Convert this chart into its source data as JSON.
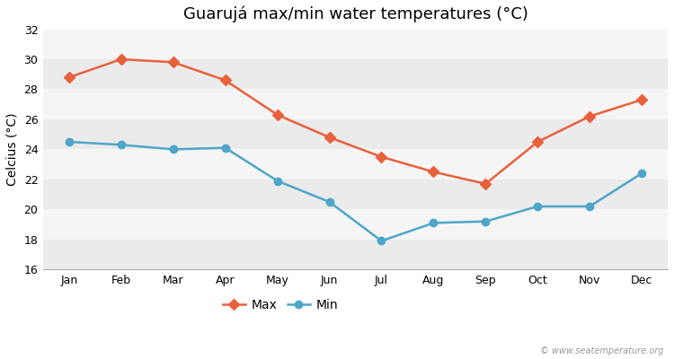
{
  "title": "Guarujá max/min water temperatures (°C)",
  "ylabel": "Celcius (°C)",
  "months": [
    "Jan",
    "Feb",
    "Mar",
    "Apr",
    "May",
    "Jun",
    "Jul",
    "Aug",
    "Sep",
    "Oct",
    "Nov",
    "Dec"
  ],
  "max_temps": [
    28.8,
    30.0,
    29.8,
    28.6,
    26.3,
    24.8,
    23.5,
    22.5,
    21.7,
    24.5,
    26.2,
    27.3
  ],
  "min_temps": [
    24.5,
    24.3,
    24.0,
    24.1,
    21.9,
    20.5,
    17.9,
    19.1,
    19.2,
    20.2,
    20.2,
    22.4
  ],
  "max_color": "#e8603c",
  "min_color": "#4da6c8",
  "background_color": "#ffffff",
  "plot_bg_light": "#f5f5f5",
  "plot_bg_dark": "#ebebeb",
  "ylim": [
    16,
    32
  ],
  "yticks": [
    16,
    18,
    20,
    22,
    24,
    26,
    28,
    30,
    32
  ],
  "title_fontsize": 13,
  "axis_label_fontsize": 10,
  "tick_fontsize": 9,
  "legend_fontsize": 10,
  "watermark": "© www.seatemperature.org",
  "max_marker": "D",
  "min_marker": "o",
  "marker_size": 6,
  "linewidth": 1.8
}
